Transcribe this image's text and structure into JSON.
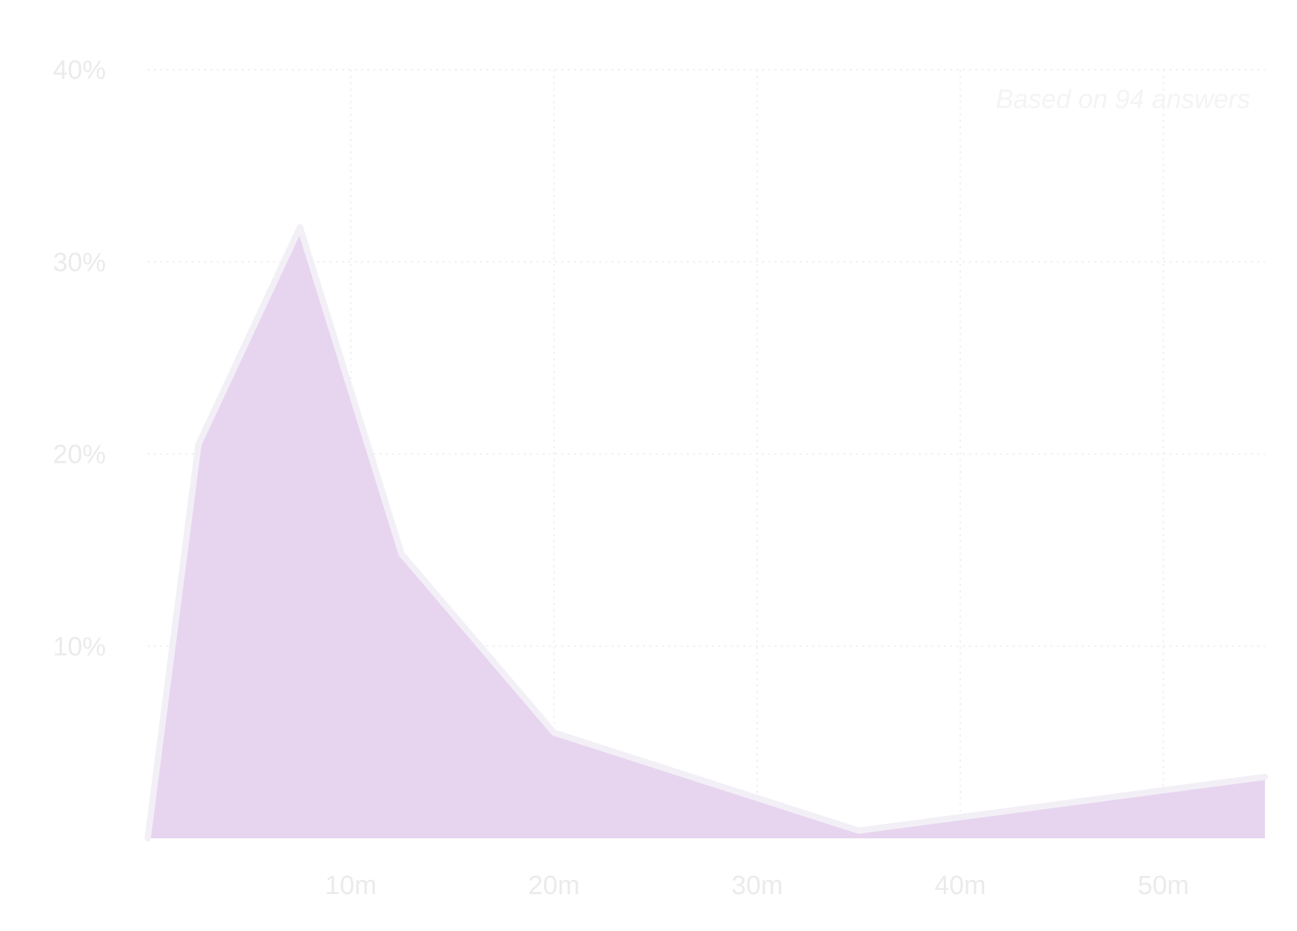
{
  "annotation": "Based on 94 answers",
  "chart_data": {
    "type": "area",
    "title": "",
    "xlabel": "",
    "ylabel": "",
    "x_ticks": [
      "10m",
      "20m",
      "30m",
      "40m",
      "50m"
    ],
    "x_tick_values": [
      10,
      20,
      30,
      40,
      50
    ],
    "y_ticks": [
      "10%",
      "20%",
      "30%",
      "40%"
    ],
    "y_tick_values": [
      10,
      20,
      30,
      40
    ],
    "xlim": [
      0,
      55
    ],
    "ylim": [
      0,
      40
    ],
    "grid": true,
    "x": [
      0,
      2.5,
      7.5,
      12.5,
      20,
      35,
      55
    ],
    "values": [
      0,
      20.5,
      31.8,
      14.8,
      5.5,
      0.4,
      3.2
    ],
    "colors": {
      "fill": "#e7d5f0",
      "stroke": "#f3eff6",
      "grid": "#efefef",
      "text": "#ebebeb"
    }
  }
}
